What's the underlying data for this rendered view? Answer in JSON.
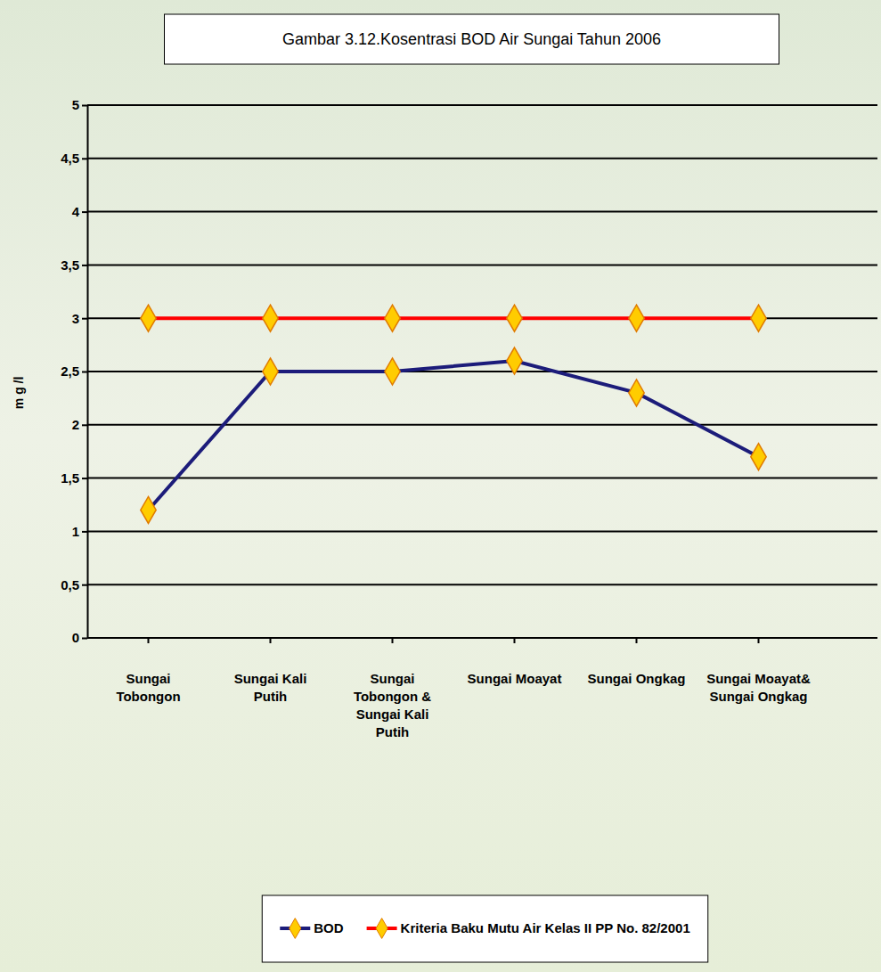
{
  "chart_data": {
    "type": "line",
    "title": "Gambar 3.12.Kosentrasi BOD Air Sungai Tahun 2006",
    "y_label": "m g /l",
    "categories": [
      "Sungai Tobongon",
      "Sungai Kali Putih",
      "Sungai Tobongon & Sungai Kali Putih",
      "Sungai Moayat",
      "Sungai Ongkag",
      "Sungai Moayat& Sungai Ongkag"
    ],
    "series": [
      {
        "name": "BOD",
        "color": "#1c1c7a",
        "marker": "diamond",
        "values": [
          1.2,
          2.5,
          2.5,
          2.6,
          2.3,
          1.7
        ]
      },
      {
        "name": "Kriteria Baku Mutu Air  Kelas II PP No. 82/2001",
        "color": "#ff0000",
        "marker": "diamond",
        "values": [
          3,
          3,
          3,
          3,
          3,
          3
        ]
      }
    ],
    "ylim": [
      0,
      5
    ],
    "yticks": [
      0,
      {
        "value": 0.5,
        "label": "0,5"
      },
      1,
      {
        "value": 1.5,
        "label": "1,5"
      },
      2,
      {
        "value": 2.5,
        "label": "2,5"
      },
      3,
      {
        "value": 3.5,
        "label": "3,5"
      },
      4,
      {
        "value": 4.5,
        "label": "4,5"
      },
      5
    ],
    "grid": true,
    "legend": "bottom"
  }
}
